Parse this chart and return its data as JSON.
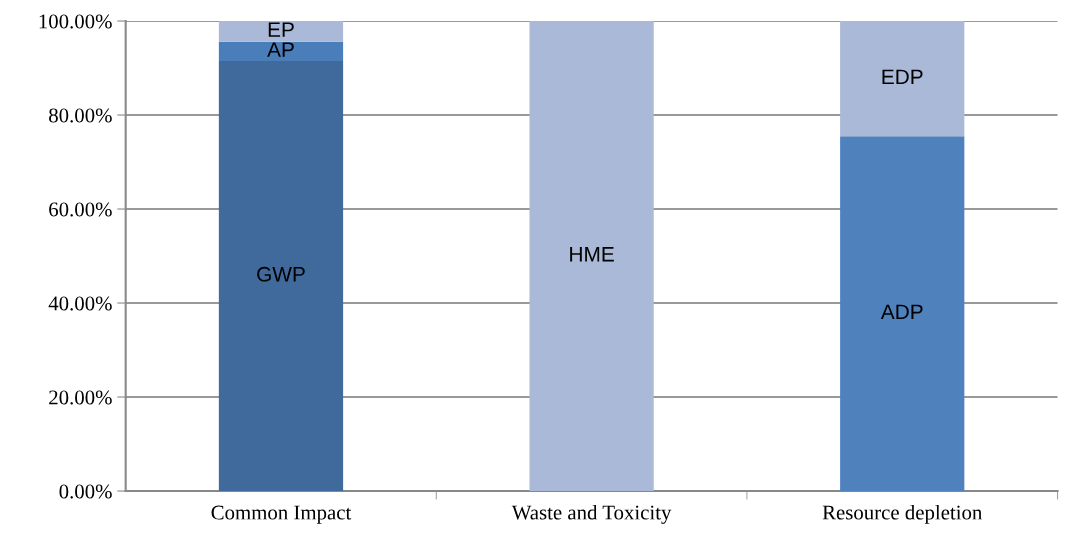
{
  "chart_data": {
    "type": "bar",
    "stacked": true,
    "categories": [
      "Common Impact",
      "Waste and Toxicity",
      "Resource depletion"
    ],
    "series": [
      {
        "name": "GWP",
        "color": "#3f6a9b",
        "values": [
          91.5,
          null,
          null
        ]
      },
      {
        "name": "AP",
        "color": "#4a7ebb",
        "values": [
          4.1,
          null,
          null
        ]
      },
      {
        "name": "EP",
        "color": "#aab9d7",
        "values": [
          4.4,
          null,
          null
        ]
      },
      {
        "name": "HME",
        "color": "#aab9d7",
        "values": [
          null,
          100,
          null
        ]
      },
      {
        "name": "ADP",
        "color": "#4f81bd",
        "values": [
          null,
          null,
          75.5
        ]
      },
      {
        "name": "EDP",
        "color": "#aab9d7",
        "values": [
          null,
          null,
          24.5
        ]
      }
    ],
    "ylim": [
      0,
      100
    ],
    "yticks": [
      {
        "value": 0,
        "label": "0.00%"
      },
      {
        "value": 20,
        "label": "20.00%"
      },
      {
        "value": 40,
        "label": "40.00%"
      },
      {
        "value": 60,
        "label": "60.00%"
      },
      {
        "value": 80,
        "label": "80.00%"
      },
      {
        "value": 100,
        "label": "100.00%"
      }
    ],
    "grid": "y",
    "legend": false
  }
}
